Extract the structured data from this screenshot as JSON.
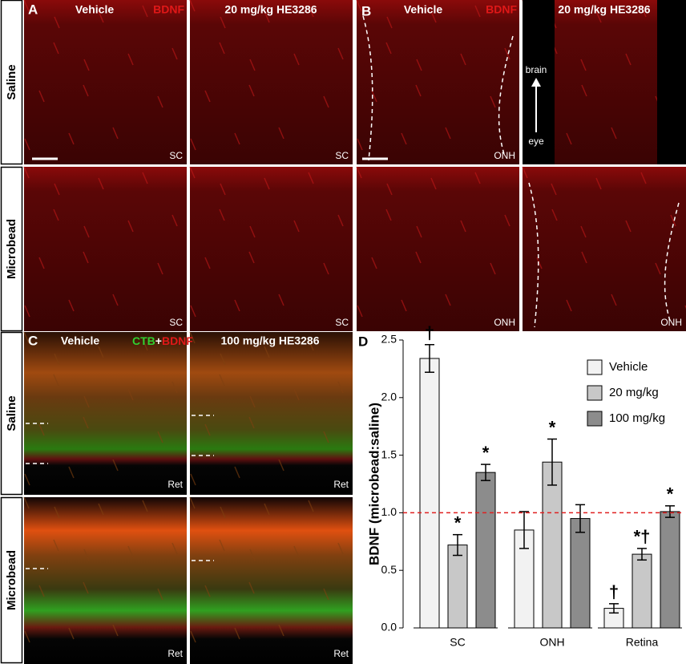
{
  "figure": {
    "rows": [
      "Saline",
      "Microbead"
    ],
    "panel_a": {
      "label": "A",
      "titles": [
        "Vehicle",
        "20 mg/kg HE3286"
      ],
      "stain": "BDNF",
      "region": "SC"
    },
    "panel_b": {
      "label": "B",
      "titles": [
        "Vehicle",
        "20 mg/kg HE3286"
      ],
      "stain": "BDNF",
      "region": "ONH",
      "arrow": [
        "brain",
        "eye"
      ]
    },
    "panel_c": {
      "label": "C",
      "titles": [
        "Vehicle",
        "100 mg/kg HE3286"
      ],
      "stain": [
        "CTB",
        "+",
        "BDNF"
      ],
      "region": "Ret"
    }
  },
  "chart_data": {
    "type": "bar",
    "label": "D",
    "ylabel": "BDNF (microbead:saline)",
    "categories": [
      "SC",
      "ONH",
      "Retina"
    ],
    "series": [
      {
        "name": "Vehicle",
        "color": "#f2f2f2",
        "values": [
          2.34,
          0.85,
          0.17
        ],
        "errors": [
          0.12,
          0.16,
          0.04
        ],
        "marks": [
          "†",
          null,
          "†"
        ]
      },
      {
        "name": "20 mg/kg",
        "color": "#c8c8c8",
        "values": [
          0.72,
          1.44,
          0.64
        ],
        "errors": [
          0.09,
          0.2,
          0.05
        ],
        "marks": [
          "*",
          "*",
          "*†"
        ]
      },
      {
        "name": "100 mg/kg",
        "color": "#8c8c8c",
        "values": [
          1.35,
          0.95,
          1.01
        ],
        "errors": [
          0.07,
          0.12,
          0.05
        ],
        "marks": [
          "*",
          null,
          "*"
        ]
      }
    ],
    "reference_line": 1,
    "reference_color": "#e02020",
    "ylim": [
      0,
      2.5
    ],
    "yticks": [
      {
        "value": 0,
        "label": "0.0"
      },
      {
        "value": 0.5,
        "label": "0.5"
      },
      {
        "value": 1,
        "label": "1.0"
      },
      {
        "value": 1.5,
        "label": "1.5"
      },
      {
        "value": 2,
        "label": "2.0"
      },
      {
        "value": 2.5,
        "label": "2.5"
      }
    ]
  }
}
